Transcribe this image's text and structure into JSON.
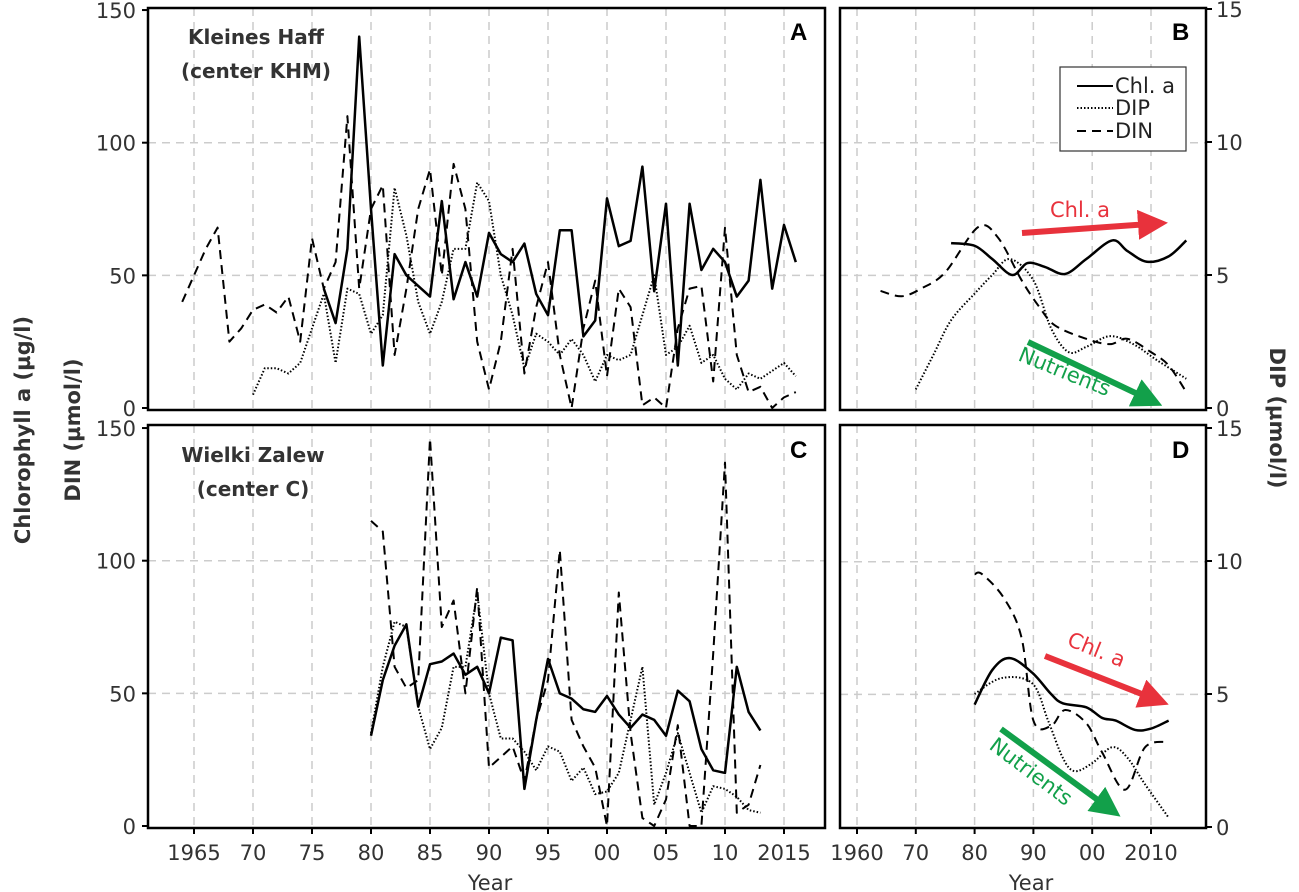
{
  "colors": {
    "chl_arrow": "#e8323c",
    "nutrient_arrow": "#12a04a",
    "grid": "#cccccc",
    "line": "#000000"
  },
  "axes": {
    "left_label_1": "Chlorophyll a (µg/l)",
    "left_label_2": "DIN (µmol/l)",
    "right_label": "DIP (µmol/l)",
    "xlabel_left": "Year",
    "xlabel_right": "Year",
    "left_ticks": [
      "0",
      "50",
      "100",
      "150"
    ],
    "right_ticks": [
      "0",
      "5",
      "10",
      "15"
    ],
    "x_ticks_left": [
      "1965",
      "70",
      "75",
      "80",
      "85",
      "90",
      "95",
      "00",
      "05",
      "10",
      "2015"
    ],
    "x_ticks_right": [
      "1960",
      "70",
      "80",
      "90",
      "00",
      "2010"
    ]
  },
  "legend": {
    "chl": "Chl. a",
    "dip": "DIP",
    "din": "DIN"
  },
  "arrows": {
    "chl": "Chl. a",
    "nutrients": "Nutrients"
  },
  "chart_data": [
    {
      "panel": "A",
      "type": "line",
      "title": "Kleines Haff",
      "subtitle": "(center KHM)",
      "xlabel": "Year",
      "ylabel": "Chlorophyll a (µg/l) / DIN (µmol/l)",
      "y2label": "DIP (µmol/l)",
      "ylim": [
        0,
        150
      ],
      "y2lim": [
        0,
        15
      ],
      "grid": true,
      "series": [
        {
          "name": "Chl. a",
          "axis": "left",
          "x": [
            1976,
            1977,
            1978,
            1979,
            1980,
            1981,
            1982,
            1983,
            1984,
            1985,
            1986,
            1987,
            1988,
            1989,
            1990,
            1991,
            1992,
            1993,
            1994,
            1995,
            1996,
            1997,
            1998,
            1999,
            2000,
            2001,
            2002,
            2003,
            2004,
            2005,
            2006,
            2007,
            2008,
            2009,
            2010,
            2011,
            2012,
            2013,
            2014,
            2015,
            2016
          ],
          "y": [
            45,
            32,
            60,
            140,
            75,
            16,
            58,
            50,
            46,
            42,
            78,
            41,
            55,
            42,
            66,
            58,
            55,
            62,
            43,
            35,
            67,
            67,
            27,
            33,
            79,
            61,
            63,
            91,
            44,
            77,
            16,
            77,
            52,
            60,
            55,
            42,
            48,
            86,
            45,
            69,
            55
          ]
        },
        {
          "name": "DIP",
          "axis": "right",
          "x": [
            1970,
            1971,
            1972,
            1973,
            1974,
            1975,
            1976,
            1977,
            1978,
            1979,
            1980,
            1981,
            1982,
            1983,
            1984,
            1985,
            1986,
            1987,
            1988,
            1989,
            1990,
            1991,
            1992,
            1993,
            1994,
            1995,
            1996,
            1997,
            1998,
            1999,
            2000,
            2001,
            2002,
            2003,
            2004,
            2005,
            2006,
            2007,
            2008,
            2009,
            2010,
            2011,
            2012,
            2013,
            2014,
            2015,
            2016
          ],
          "y": [
            0.5,
            1.5,
            1.5,
            1.3,
            1.7,
            3.0,
            4.3,
            1.7,
            4.5,
            4.3,
            2.8,
            3.5,
            8.3,
            6.5,
            4.0,
            2.8,
            4.0,
            6.0,
            6.0,
            8.5,
            7.8,
            5.0,
            3.5,
            1.5,
            2.8,
            2.5,
            2.0,
            2.6,
            2.0,
            1.0,
            2.0,
            1.8,
            2.0,
            3.5,
            5.0,
            2.0,
            2.3,
            3.1,
            1.7,
            2.0,
            1.1,
            0.7,
            1.3,
            1.1,
            1.4,
            1.7,
            1.2
          ]
        },
        {
          "name": "DIN",
          "axis": "left",
          "x": [
            1964,
            1965,
            1966,
            1967,
            1968,
            1969,
            1970,
            1971,
            1972,
            1973,
            1974,
            1975,
            1976,
            1977,
            1978,
            1979,
            1980,
            1981,
            1982,
            1983,
            1984,
            1985,
            1986,
            1987,
            1988,
            1989,
            1990,
            1991,
            1992,
            1993,
            1994,
            1995,
            1996,
            1997,
            1998,
            1999,
            2000,
            2001,
            2002,
            2003,
            2004,
            2005,
            2006,
            2007,
            2008,
            2009,
            2010,
            2011,
            2012,
            2013,
            2014,
            2015,
            2016
          ],
          "y": [
            40,
            50,
            60,
            68,
            25,
            30,
            37,
            39,
            36,
            42,
            25,
            64,
            45,
            55,
            110,
            45,
            75,
            84,
            20,
            45,
            75,
            90,
            50,
            92,
            75,
            25,
            7,
            25,
            60,
            13,
            38,
            55,
            20,
            0,
            30,
            48,
            12,
            45,
            38,
            1,
            4,
            0,
            30,
            45,
            46,
            10,
            68,
            20,
            6,
            8,
            0,
            4,
            6
          ]
        }
      ]
    },
    {
      "panel": "B",
      "type": "line",
      "xlabel": "",
      "y2label": "DIP (µmol/l)",
      "y2lim": [
        0,
        15
      ],
      "grid": true,
      "legend_position": "top-right",
      "series": [
        {
          "name": "Chl. a",
          "x": [
            1976,
            1980,
            1983,
            1986.4,
            1989,
            1992,
            1995.4,
            1999,
            2003.4,
            2006,
            2009.3,
            2013,
            2016
          ],
          "y": [
            6.2,
            6.1,
            5.6,
            5.0,
            5.45,
            5.3,
            5.04,
            5.6,
            6.3,
            5.9,
            5.5,
            5.7,
            6.3
          ]
        },
        {
          "name": "DIP",
          "x": [
            1970,
            1973,
            1976,
            1980,
            1983,
            1986,
            1990,
            1993,
            1996,
            1999,
            2003,
            2007,
            2011,
            2016
          ],
          "y": [
            0.7,
            2.0,
            3.3,
            4.3,
            5.0,
            5.6,
            4.8,
            3.0,
            2.1,
            2.3,
            2.7,
            2.4,
            1.8,
            1.1
          ]
        },
        {
          "name": "DIN",
          "x": [
            1964,
            1967.6,
            1971,
            1975,
            1980.6,
            1984,
            1988,
            1991,
            1993.7,
            1999,
            2003,
            2006,
            2010,
            2013,
            2016
          ],
          "y": [
            4.4,
            4.2,
            4.5,
            5.1,
            6.8,
            6.4,
            4.8,
            3.8,
            3.1,
            2.6,
            2.4,
            2.6,
            2.1,
            1.6,
            0.6
          ]
        }
      ],
      "annotations": [
        "Chl. a",
        "Nutrients"
      ]
    },
    {
      "panel": "C",
      "type": "line",
      "title": "Wielki Zalew",
      "subtitle": "(center C)",
      "xlabel": "Year",
      "ylim": [
        0,
        150
      ],
      "y2lim": [
        0,
        15
      ],
      "grid": true,
      "series": [
        {
          "name": "Chl. a",
          "axis": "left",
          "x": [
            1980,
            1981,
            1982,
            1983,
            1984,
            1985,
            1986,
            1987,
            1988,
            1989,
            1990,
            1991,
            1992,
            1993,
            1994,
            1995,
            1996,
            1997,
            1998,
            1999,
            2000,
            2001,
            2002,
            2003,
            2004,
            2005,
            2006,
            2007,
            2008,
            2009,
            2010,
            2011,
            2012,
            2013
          ],
          "y": [
            34,
            55,
            68,
            76,
            45,
            61,
            62,
            65,
            57,
            60,
            50,
            71,
            70,
            14,
            40,
            63,
            50,
            48,
            44,
            43,
            49,
            42,
            37,
            42,
            40,
            34,
            51,
            47,
            29,
            21,
            20,
            60,
            43,
            36
          ]
        },
        {
          "name": "DIP",
          "axis": "right",
          "x": [
            1980,
            1981,
            1982,
            1983,
            1984,
            1985,
            1986,
            1987,
            1988,
            1989,
            1990,
            1991,
            1992,
            1993,
            1994,
            1995,
            1996,
            1997,
            1998,
            1999,
            2000,
            2001,
            2002,
            2003,
            2004,
            2005,
            2006,
            2007,
            2008,
            2009,
            2010,
            2011,
            2012,
            2013
          ],
          "y": [
            3.5,
            6.0,
            7.7,
            7.5,
            4.5,
            2.9,
            3.7,
            6.0,
            6.0,
            8.8,
            5.0,
            3.3,
            3.3,
            2.8,
            2.1,
            3.0,
            2.8,
            1.7,
            2.2,
            1.2,
            1.3,
            2.0,
            4.0,
            6.0,
            0.8,
            2.0,
            3.5,
            2.0,
            0.5,
            1.5,
            1.4,
            1.1,
            0.6,
            0.5
          ]
        },
        {
          "name": "DIN",
          "axis": "left",
          "x": [
            1980,
            1981,
            1982,
            1983,
            1984,
            1985,
            1986,
            1987,
            1988,
            1989,
            1990,
            1991,
            1992,
            1993,
            1994,
            1995,
            1996,
            1997,
            1998,
            1999,
            2000,
            2001,
            2002,
            2003,
            2004,
            2005,
            2006,
            2007,
            2008,
            2009,
            2010,
            2011,
            2012,
            2013
          ],
          "y": [
            115,
            111,
            60,
            52,
            55,
            146,
            75,
            85,
            50,
            90,
            22,
            26,
            30,
            17,
            40,
            55,
            104,
            40,
            30,
            22,
            0,
            88,
            35,
            3,
            0,
            10,
            38,
            0,
            0,
            65,
            137,
            5,
            8,
            23
          ]
        }
      ]
    },
    {
      "panel": "D",
      "type": "line",
      "xlabel": "Year",
      "y2lim": [
        0,
        15
      ],
      "grid": true,
      "series": [
        {
          "name": "Chl. a",
          "x": [
            1980,
            1983,
            1986,
            1989.8,
            1993,
            1995,
            1999,
            2001.7,
            2004,
            2007.3,
            2010,
            2013
          ],
          "y": [
            4.6,
            5.9,
            6.35,
            5.8,
            5.0,
            4.65,
            4.5,
            4.1,
            4.0,
            3.65,
            3.7,
            4.0
          ]
        },
        {
          "name": "DIP",
          "x": [
            1980,
            1984.6,
            1989.8,
            1992.5,
            1995,
            1997,
            2000,
            2003.4,
            2006,
            2009,
            2013
          ],
          "y": [
            5.0,
            5.6,
            5.4,
            4.0,
            2.6,
            2.1,
            2.4,
            3.0,
            2.6,
            1.6,
            0.35
          ]
        },
        {
          "name": "DIN",
          "x": [
            1980,
            1981.3,
            1985,
            1988,
            1990,
            1993,
            1995.4,
            1999,
            2001.7,
            2005.6,
            2009,
            2013
          ],
          "y": [
            9.5,
            9.5,
            8.6,
            7.1,
            4.0,
            3.8,
            4.4,
            3.9,
            2.8,
            1.4,
            3.0,
            3.2
          ]
        }
      ],
      "annotations": [
        "Chl. a",
        "Nutrients"
      ]
    }
  ]
}
